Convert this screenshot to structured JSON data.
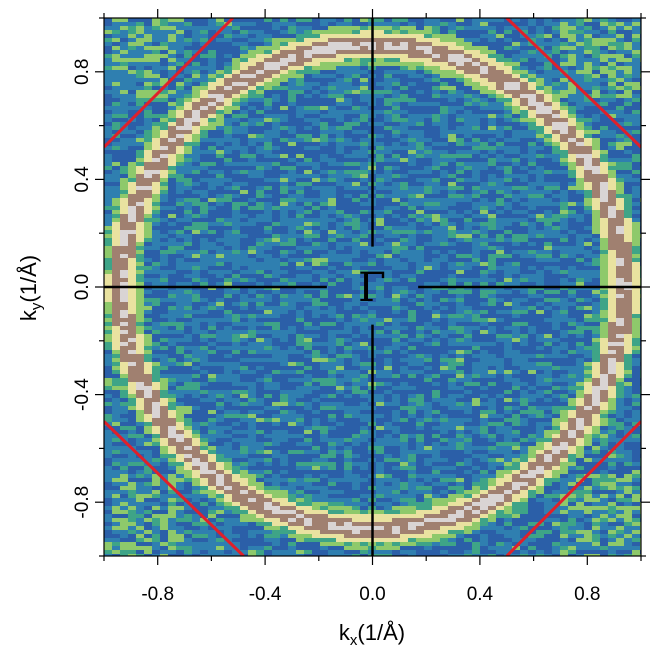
{
  "chart_data": {
    "type": "heatmap",
    "title": "",
    "xlabel": {
      "main": "k",
      "sub": "x",
      "unit": "(1/Å)"
    },
    "ylabel": {
      "main": "k",
      "sub": "y",
      "unit": "(1/Å)"
    },
    "xlim": [
      -1.0,
      1.0
    ],
    "ylim": [
      -1.0,
      1.0
    ],
    "xticks": [
      -0.8,
      -0.4,
      0.0,
      0.4,
      0.8
    ],
    "yticks": [
      -0.8,
      -0.4,
      0.0,
      0.4,
      0.8
    ],
    "xtick_labels": [
      "-0.8",
      "-0.4",
      "0.0",
      "0.4",
      "0.8"
    ],
    "ytick_labels": [
      "-0.8",
      "-0.4",
      "0.0",
      "0.4",
      "0.8"
    ],
    "grid": false,
    "center_label": "Γ",
    "colormap": [
      "#2b5fa8",
      "#2f7fb0",
      "#3ea487",
      "#8ec96b",
      "#e9e2a0",
      "#a08070",
      "#d9d4d4"
    ],
    "fermi_surface_ring": {
      "center": [
        0.0,
        0.0
      ],
      "kx_radius": 0.935,
      "ky_radius": 0.9
    },
    "zone_boundary_lines": {
      "color": "#e0202a",
      "segments": [
        {
          "x": [
            -1.0,
            -0.52
          ],
          "y": [
            0.52,
            1.0
          ]
        },
        {
          "x": [
            0.5,
            1.0
          ],
          "y": [
            1.0,
            0.52
          ]
        },
        {
          "x": [
            -1.0,
            -0.48
          ],
          "y": [
            -0.5,
            -1.0
          ]
        },
        {
          "x": [
            0.5,
            1.0
          ],
          "y": [
            -1.0,
            -0.5
          ]
        }
      ]
    },
    "center_cross": {
      "horizontal_segments": [
        {
          "x": [
            -1.0,
            -0.17
          ]
        },
        {
          "x": [
            0.17,
            1.0
          ]
        }
      ],
      "vertical_segments": [
        {
          "y": [
            0.15,
            1.0
          ]
        },
        {
          "y": [
            -1.0,
            -0.14
          ]
        }
      ]
    }
  }
}
